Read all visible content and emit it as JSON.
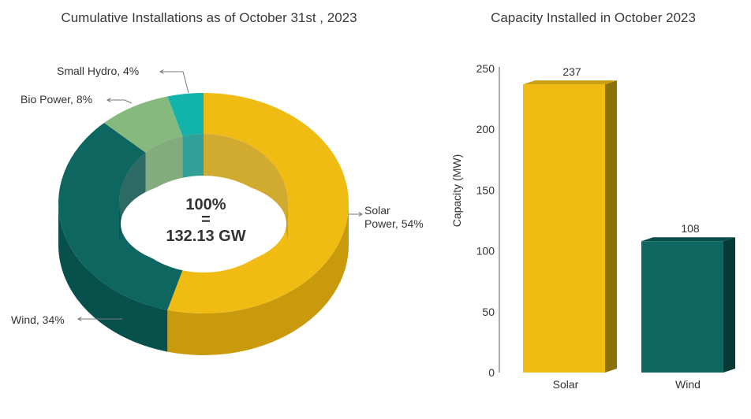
{
  "chart_data": [
    {
      "type": "pie",
      "title": "Cumulative Installations as of October 31st , 2023",
      "center_line1": "100%",
      "center_line2": "=",
      "center_line3": "132.13 GW",
      "slices": [
        {
          "name": "Solar Power",
          "label": "Solar Power, 54%",
          "label_line1": "Solar",
          "label_line2": "Power, 54%",
          "value": 54,
          "color": "#F0BC14",
          "side_color": "#C99B0C"
        },
        {
          "name": "Wind",
          "label": "Wind, 34%",
          "value": 34,
          "color": "#0E6660",
          "side_color": "#08504B"
        },
        {
          "name": "Bio Power",
          "label": "Bio Power, 8%",
          "value": 8,
          "color": "#86B97E",
          "side_color": "#6E9C67"
        },
        {
          "name": "Small Hydro",
          "label": "Small Hydro, 4%",
          "value": 4,
          "color": "#12B3A8",
          "side_color": "#0C8F86"
        }
      ]
    },
    {
      "type": "bar",
      "title": "Capacity Installed in October 2023",
      "categories": [
        "Solar",
        "Wind"
      ],
      "values": [
        237,
        108
      ],
      "colors": [
        "#F0BC14",
        "#0E6660"
      ],
      "top_colors": [
        "#C9A010",
        "#0A4E49"
      ],
      "side_colors": [
        "#8C7008",
        "#063A36"
      ],
      "ylabel": "Capacity (MW)",
      "ylim": [
        0,
        250
      ],
      "yticks": [
        0,
        50,
        100,
        150,
        200,
        250
      ]
    }
  ]
}
